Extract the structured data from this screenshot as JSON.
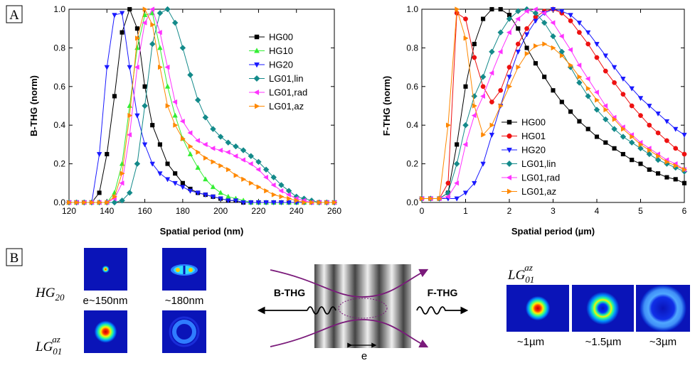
{
  "panel_labels": [
    "A",
    "B"
  ],
  "chart_data": [
    {
      "type": "line",
      "xlabel": "Spatial period (nm)",
      "ylabel": "B-THG (norm)",
      "xlim": [
        120,
        260
      ],
      "xticks": [
        120,
        140,
        160,
        180,
        200,
        220,
        240,
        260
      ],
      "ylim": [
        0,
        1
      ],
      "yticks": [
        {
          "value": 0,
          "label": "0.0"
        },
        0.2,
        0.4,
        0.6,
        0.8,
        {
          "value": 1,
          "label": "1.0"
        }
      ],
      "legend": "upper right",
      "x": [
        120,
        124,
        128,
        132,
        136,
        140,
        144,
        148,
        152,
        156,
        160,
        164,
        168,
        172,
        176,
        180,
        184,
        188,
        192,
        196,
        200,
        204,
        208,
        212,
        216,
        220,
        224,
        228,
        232,
        236,
        240,
        244,
        248,
        252,
        256,
        260
      ],
      "series": [
        {
          "name": "HG00",
          "color": "#000000",
          "marker": "square",
          "values": [
            0,
            0,
            0,
            0,
            0.05,
            0.25,
            0.55,
            0.88,
            1.0,
            0.9,
            0.6,
            0.4,
            0.3,
            0.2,
            0.15,
            0.1,
            0.07,
            0.05,
            0.04,
            0.03,
            0.02,
            0.01,
            0.01,
            0,
            0,
            0,
            0,
            0,
            0,
            0,
            0,
            0,
            0,
            0,
            0,
            0
          ]
        },
        {
          "name": "HG10",
          "color": "#33ee33",
          "marker": "triangle-up",
          "values": [
            0,
            0,
            0,
            0,
            0,
            0,
            0.05,
            0.2,
            0.5,
            0.8,
            0.97,
            0.98,
            0.8,
            0.6,
            0.45,
            0.33,
            0.25,
            0.18,
            0.12,
            0.08,
            0.05,
            0.03,
            0.02,
            0.01,
            0,
            0,
            0,
            0,
            0,
            0,
            0,
            0,
            0,
            0,
            0,
            0
          ]
        },
        {
          "name": "HG20",
          "color": "#1a1aff",
          "marker": "triangle-down",
          "values": [
            0,
            0,
            0,
            0,
            0.25,
            0.7,
            0.97,
            0.98,
            0.7,
            0.45,
            0.3,
            0.2,
            0.15,
            0.12,
            0.1,
            0.08,
            0.06,
            0.05,
            0.04,
            0.03,
            0.02,
            0.01,
            0.01,
            0,
            0,
            0,
            0,
            0,
            0,
            0,
            0,
            0,
            0,
            0,
            0,
            0
          ]
        },
        {
          "name": "LG01,lin",
          "color": "#138a8a",
          "marker": "diamond",
          "values": [
            0,
            0,
            0,
            0,
            0,
            0,
            0,
            0.01,
            0.05,
            0.2,
            0.5,
            0.82,
            0.98,
            1.0,
            0.93,
            0.8,
            0.66,
            0.53,
            0.44,
            0.38,
            0.34,
            0.31,
            0.29,
            0.27,
            0.24,
            0.21,
            0.17,
            0.13,
            0.09,
            0.06,
            0.03,
            0.02,
            0.01,
            0,
            0,
            0
          ]
        },
        {
          "name": "LG01,rad",
          "color": "#ff33ff",
          "marker": "triangle-left",
          "values": [
            0,
            0,
            0,
            0,
            0,
            0,
            0.02,
            0.1,
            0.35,
            0.7,
            0.93,
            1.0,
            0.88,
            0.7,
            0.52,
            0.42,
            0.36,
            0.32,
            0.3,
            0.28,
            0.27,
            0.26,
            0.24,
            0.22,
            0.2,
            0.17,
            0.13,
            0.09,
            0.06,
            0.04,
            0.02,
            0.01,
            0,
            0,
            0,
            0
          ]
        },
        {
          "name": "LG01,az",
          "color": "#ff8800",
          "marker": "triangle-right",
          "values": [
            0,
            0,
            0,
            0,
            0,
            0,
            0.03,
            0.15,
            0.45,
            0.85,
            1.0,
            0.92,
            0.7,
            0.5,
            0.4,
            0.33,
            0.29,
            0.26,
            0.23,
            0.21,
            0.19,
            0.17,
            0.14,
            0.12,
            0.1,
            0.08,
            0.06,
            0.04,
            0.03,
            0.02,
            0.01,
            0,
            0,
            0,
            0,
            0
          ]
        }
      ]
    },
    {
      "type": "line",
      "xlabel": "Spatial period (µm)",
      "ylabel": "F-THG (norm)",
      "xlim": [
        0,
        6
      ],
      "xticks": [
        0,
        1,
        2,
        3,
        4,
        5,
        6
      ],
      "ylim": [
        0,
        1
      ],
      "yticks": [
        {
          "value": 0,
          "label": "0.0"
        },
        0.2,
        0.4,
        0.6,
        0.8,
        {
          "value": 1,
          "label": "1.0"
        }
      ],
      "legend": "lower left",
      "x": [
        0,
        0.2,
        0.4,
        0.6,
        0.8,
        1.0,
        1.2,
        1.4,
        1.6,
        1.8,
        2.0,
        2.2,
        2.4,
        2.6,
        2.8,
        3.0,
        3.2,
        3.4,
        3.6,
        3.8,
        4.0,
        4.2,
        4.4,
        4.6,
        4.8,
        5.0,
        5.2,
        5.4,
        5.6,
        5.8,
        6.0
      ],
      "series": [
        {
          "name": "HG00",
          "color": "#000000",
          "marker": "square",
          "values": [
            0.02,
            0.02,
            0.02,
            0.05,
            0.3,
            0.6,
            0.82,
            0.95,
            1.0,
            1.0,
            0.97,
            0.9,
            0.8,
            0.72,
            0.65,
            0.58,
            0.52,
            0.47,
            0.42,
            0.38,
            0.34,
            0.31,
            0.28,
            0.25,
            0.22,
            0.2,
            0.17,
            0.15,
            0.13,
            0.12,
            0.1
          ]
        },
        {
          "name": "HG01",
          "color": "#ee1111",
          "marker": "circle",
          "values": [
            0.02,
            0.02,
            0.02,
            0.1,
            0.98,
            0.95,
            0.75,
            0.6,
            0.52,
            0.58,
            0.7,
            0.82,
            0.9,
            0.96,
            0.99,
            1.0,
            0.98,
            0.94,
            0.88,
            0.82,
            0.75,
            0.68,
            0.62,
            0.56,
            0.5,
            0.45,
            0.4,
            0.36,
            0.32,
            0.28,
            0.25
          ]
        },
        {
          "name": "HG20",
          "color": "#1a1aff",
          "marker": "triangle-down",
          "values": [
            0.02,
            0.02,
            0.02,
            0.02,
            0.02,
            0.05,
            0.1,
            0.2,
            0.35,
            0.5,
            0.65,
            0.78,
            0.87,
            0.94,
            0.98,
            1.0,
            0.99,
            0.97,
            0.93,
            0.88,
            0.82,
            0.76,
            0.7,
            0.64,
            0.59,
            0.54,
            0.5,
            0.46,
            0.42,
            0.38,
            0.35
          ]
        },
        {
          "name": "LG01,lin",
          "color": "#138a8a",
          "marker": "diamond",
          "values": [
            0.02,
            0.02,
            0.02,
            0.05,
            0.2,
            0.4,
            0.55,
            0.65,
            0.78,
            0.88,
            0.95,
            0.99,
            1.0,
            0.98,
            0.93,
            0.86,
            0.78,
            0.7,
            0.62,
            0.55,
            0.48,
            0.43,
            0.38,
            0.34,
            0.31,
            0.28,
            0.25,
            0.22,
            0.2,
            0.18,
            0.16
          ]
        },
        {
          "name": "LG01,rad",
          "color": "#ff33ff",
          "marker": "triangle-left",
          "values": [
            0.02,
            0.02,
            0.02,
            0.03,
            0.1,
            0.3,
            0.45,
            0.55,
            0.67,
            0.78,
            0.88,
            0.95,
            0.99,
            1.0,
            0.98,
            0.93,
            0.86,
            0.79,
            0.71,
            0.64,
            0.57,
            0.5,
            0.44,
            0.39,
            0.35,
            0.31,
            0.28,
            0.25,
            0.22,
            0.2,
            0.17
          ]
        },
        {
          "name": "LG01,az",
          "color": "#ff8800",
          "marker": "triangle-right",
          "values": [
            0.02,
            0.02,
            0.02,
            0.4,
            1.0,
            0.85,
            0.5,
            0.35,
            0.4,
            0.5,
            0.6,
            0.7,
            0.77,
            0.81,
            0.82,
            0.8,
            0.76,
            0.71,
            0.65,
            0.59,
            0.53,
            0.48,
            0.43,
            0.38,
            0.34,
            0.3,
            0.27,
            0.24,
            0.21,
            0.19,
            0.17
          ]
        }
      ]
    }
  ],
  "panel_b": {
    "left_row_labels": [
      {
        "main": "HG",
        "sub": "20"
      },
      {
        "main": "LG",
        "sub": "01",
        "sup": "az"
      }
    ],
    "left_captions": [
      "e~150nm",
      "~180nm"
    ],
    "b_thg": "B-THG",
    "f_thg": "F-THG",
    "period": "e",
    "right_row_label": {
      "main": "LG",
      "sub": "01",
      "sup": "az"
    },
    "right_captions": [
      "~1µm",
      "~1.5µm",
      "~3µm"
    ]
  }
}
